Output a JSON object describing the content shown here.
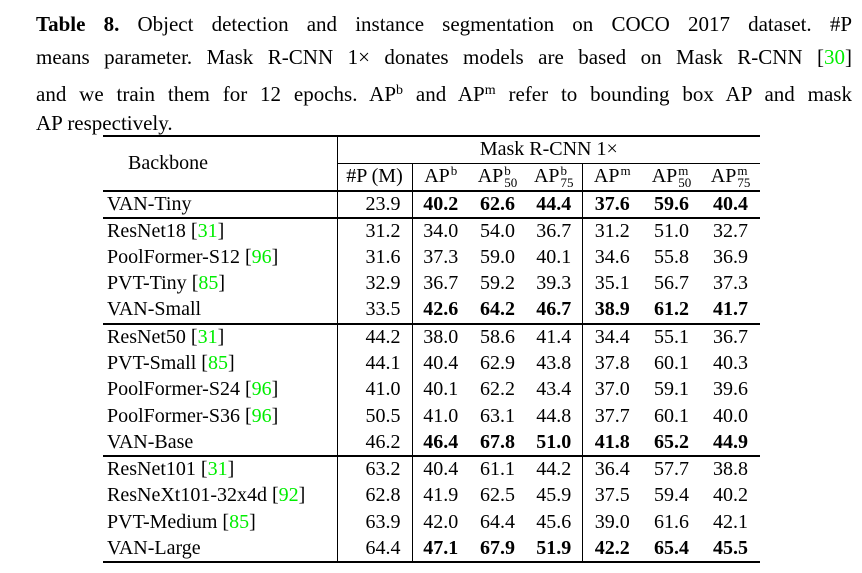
{
  "colors": {
    "background": "#ffffff",
    "text": "#000000",
    "citation_green": "#00ee00",
    "rule": "#000000"
  },
  "caption": {
    "lines": [
      {
        "segments": [
          {
            "text": "Table 8.",
            "style": "bold"
          },
          {
            "text": " Object detection and instance segmentation on COCO 2017 dataset. #P",
            "style": "normal"
          }
        ]
      },
      {
        "segments": [
          {
            "text": "means parameter. Mask R-CNN 1× donates models are based on Mask R-CNN [",
            "style": "normal"
          },
          {
            "text": "30",
            "style": "cite"
          },
          {
            "text": "]",
            "style": "normal"
          }
        ]
      },
      {
        "segments": [
          {
            "text": "and we train them for 12 epochs. AP",
            "style": "normal"
          },
          {
            "text": "b",
            "style": "sup"
          },
          {
            "text": " and AP",
            "style": "normal"
          },
          {
            "text": "m",
            "style": "sup"
          },
          {
            "text": " refer to bounding box AP and mask",
            "style": "normal"
          }
        ]
      },
      {
        "segments": [
          {
            "text": "AP respectively.",
            "style": "normal"
          }
        ]
      }
    ]
  },
  "table": {
    "header": {
      "backbone_label": "Backbone",
      "group_label": "Mask R-CNN 1×",
      "param_label": "#P (M)",
      "ap_columns": [
        {
          "base": "AP",
          "sup": "b",
          "sub": ""
        },
        {
          "base": "AP",
          "sup": "b",
          "sub": "50"
        },
        {
          "base": "AP",
          "sup": "b",
          "sub": "75"
        },
        {
          "base": "AP",
          "sup": "m",
          "sub": ""
        },
        {
          "base": "AP",
          "sup": "m",
          "sub": "50"
        },
        {
          "base": "AP",
          "sup": "m",
          "sub": "75"
        }
      ]
    },
    "rows": [
      {
        "backbone": "VAN-Tiny",
        "cite": "",
        "params": "23.9",
        "values": [
          "40.2",
          "62.6",
          "44.4",
          "37.6",
          "59.6",
          "40.4"
        ],
        "bold_values": true,
        "rule_above": false
      },
      {
        "backbone": "ResNet18",
        "cite": "31",
        "params": "31.2",
        "values": [
          "34.0",
          "54.0",
          "36.7",
          "31.2",
          "51.0",
          "32.7"
        ],
        "bold_values": false,
        "rule_above": true
      },
      {
        "backbone": "PoolFormer-S12",
        "cite": "96",
        "params": "31.6",
        "values": [
          "37.3",
          "59.0",
          "40.1",
          "34.6",
          "55.8",
          "36.9"
        ],
        "bold_values": false,
        "rule_above": false
      },
      {
        "backbone": "PVT-Tiny",
        "cite": "85",
        "params": "32.9",
        "values": [
          "36.7",
          "59.2",
          "39.3",
          "35.1",
          "56.7",
          "37.3"
        ],
        "bold_values": false,
        "rule_above": false
      },
      {
        "backbone": "VAN-Small",
        "cite": "",
        "params": "33.5",
        "values": [
          "42.6",
          "64.2",
          "46.7",
          "38.9",
          "61.2",
          "41.7"
        ],
        "bold_values": true,
        "rule_above": false
      },
      {
        "backbone": "ResNet50",
        "cite": "31",
        "params": "44.2",
        "values": [
          "38.0",
          "58.6",
          "41.4",
          "34.4",
          "55.1",
          "36.7"
        ],
        "bold_values": false,
        "rule_above": true
      },
      {
        "backbone": "PVT-Small",
        "cite": "85",
        "params": "44.1",
        "values": [
          "40.4",
          "62.9",
          "43.8",
          "37.8",
          "60.1",
          "40.3"
        ],
        "bold_values": false,
        "rule_above": false
      },
      {
        "backbone": "PoolFormer-S24",
        "cite": "96",
        "params": "41.0",
        "values": [
          "40.1",
          "62.2",
          "43.4",
          "37.0",
          "59.1",
          "39.6"
        ],
        "bold_values": false,
        "rule_above": false
      },
      {
        "backbone": "PoolFormer-S36",
        "cite": "96",
        "params": "50.5",
        "values": [
          "41.0",
          "63.1",
          "44.8",
          "37.7",
          "60.1",
          "40.0"
        ],
        "bold_values": false,
        "rule_above": false
      },
      {
        "backbone": "VAN-Base",
        "cite": "",
        "params": "46.2",
        "values": [
          "46.4",
          "67.8",
          "51.0",
          "41.8",
          "65.2",
          "44.9"
        ],
        "bold_values": true,
        "rule_above": false
      },
      {
        "backbone": "ResNet101",
        "cite": "31",
        "params": "63.2",
        "values": [
          "40.4",
          "61.1",
          "44.2",
          "36.4",
          "57.7",
          "38.8"
        ],
        "bold_values": false,
        "rule_above": true
      },
      {
        "backbone": "ResNeXt101-32x4d",
        "cite": "92",
        "params": "62.8",
        "values": [
          "41.9",
          "62.5",
          "45.9",
          "37.5",
          "59.4",
          "40.2"
        ],
        "bold_values": false,
        "rule_above": false
      },
      {
        "backbone": "PVT-Medium",
        "cite": "85",
        "params": "63.9",
        "values": [
          "42.0",
          "64.4",
          "45.6",
          "39.0",
          "61.6",
          "42.1"
        ],
        "bold_values": false,
        "rule_above": false
      },
      {
        "backbone": "VAN-Large",
        "cite": "",
        "params": "64.4",
        "values": [
          "47.1",
          "67.9",
          "51.9",
          "42.2",
          "65.4",
          "45.5"
        ],
        "bold_values": true,
        "rule_above": false
      }
    ]
  }
}
